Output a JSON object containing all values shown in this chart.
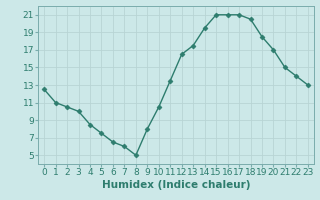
{
  "x": [
    0,
    1,
    2,
    3,
    4,
    5,
    6,
    7,
    8,
    9,
    10,
    11,
    12,
    13,
    14,
    15,
    16,
    17,
    18,
    19,
    20,
    21,
    22,
    23
  ],
  "y": [
    12.5,
    11.0,
    10.5,
    10.0,
    8.5,
    7.5,
    6.5,
    6.0,
    5.0,
    8.0,
    10.5,
    13.5,
    16.5,
    17.5,
    19.5,
    21.0,
    21.0,
    21.0,
    20.5,
    18.5,
    17.0,
    15.0,
    14.0,
    13.0
  ],
  "line_color": "#2e7d6e",
  "marker": "D",
  "markersize": 2.5,
  "linewidth": 1.0,
  "xlabel": "Humidex (Indice chaleur)",
  "ylabel": "",
  "xlim": [
    -0.5,
    23.5
  ],
  "ylim": [
    4,
    22
  ],
  "yticks": [
    5,
    7,
    9,
    11,
    13,
    15,
    17,
    19,
    21
  ],
  "xtick_labels": [
    "0",
    "1",
    "2",
    "3",
    "4",
    "5",
    "6",
    "7",
    "8",
    "9",
    "10",
    "11",
    "12",
    "13",
    "14",
    "15",
    "16",
    "17",
    "18",
    "19",
    "20",
    "21",
    "22",
    "23"
  ],
  "bg_color": "#cce8e8",
  "grid_color": "#b8d4d4",
  "tick_fontsize": 6.5,
  "xlabel_fontsize": 7.5
}
